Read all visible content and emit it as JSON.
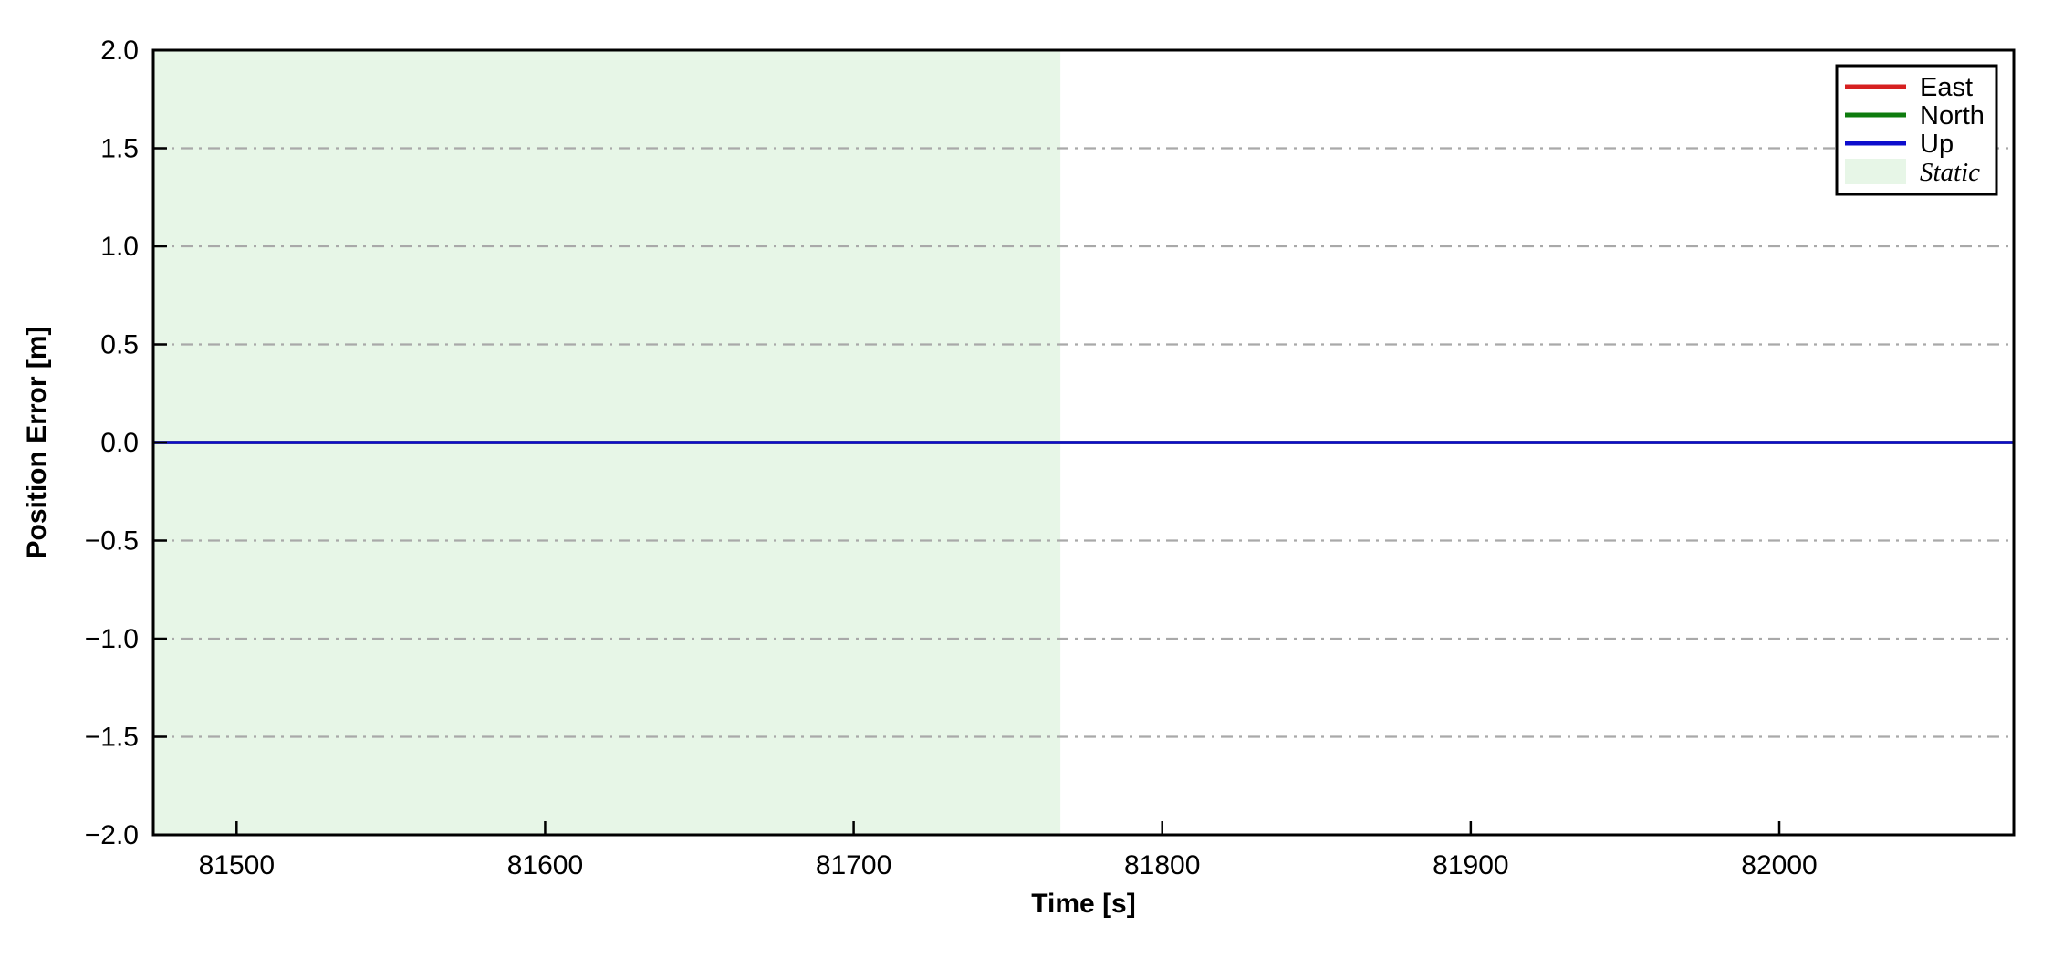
{
  "figure": {
    "background": "#ffffff",
    "frame_color": "#000000"
  },
  "chart_data": {
    "type": "line",
    "title": "",
    "xlabel": "Time [s]",
    "ylabel": "Position Error [m]",
    "xlim": [
      81473,
      82076
    ],
    "ylim": [
      -2.0,
      2.0
    ],
    "x_ticks": [
      81500,
      81600,
      81700,
      81800,
      81900,
      82000
    ],
    "y_ticks": [
      -2.0,
      -1.5,
      -1.0,
      -0.5,
      0.0,
      0.5,
      1.0,
      1.5,
      2.0
    ],
    "grid": {
      "horizontal": true,
      "vertical": false,
      "line_style": "dash-dot",
      "color": "#a9a9a9",
      "levels": [
        -1.5,
        -1.0,
        -0.5,
        0.0,
        0.5,
        1.0,
        1.5
      ]
    },
    "series": [
      {
        "name": "East",
        "color": "#d62020",
        "x": [
          81473,
          82076
        ],
        "values": [
          0.0,
          0.0
        ]
      },
      {
        "name": "North",
        "color": "#0e7c0e",
        "x": [
          81473,
          82076
        ],
        "values": [
          0.0,
          0.0
        ]
      },
      {
        "name": "Up",
        "color": "#0d0dcd",
        "x": [
          81473,
          82076
        ],
        "values": [
          0.0,
          0.0
        ]
      }
    ],
    "regions": [
      {
        "name": "Static",
        "x_start": 81473,
        "x_end": 81767,
        "fill": "#e7f6e7"
      }
    ],
    "legend": {
      "position": "top-right",
      "entries": [
        {
          "label": "East",
          "type": "line",
          "color": "#d62020",
          "italic": false
        },
        {
          "label": "North",
          "type": "line",
          "color": "#0e7c0e",
          "italic": false
        },
        {
          "label": "Up",
          "type": "line",
          "color": "#0d0dcd",
          "italic": false
        },
        {
          "label": "Static",
          "type": "patch",
          "color": "#e7f6e7",
          "italic": true
        }
      ]
    }
  }
}
